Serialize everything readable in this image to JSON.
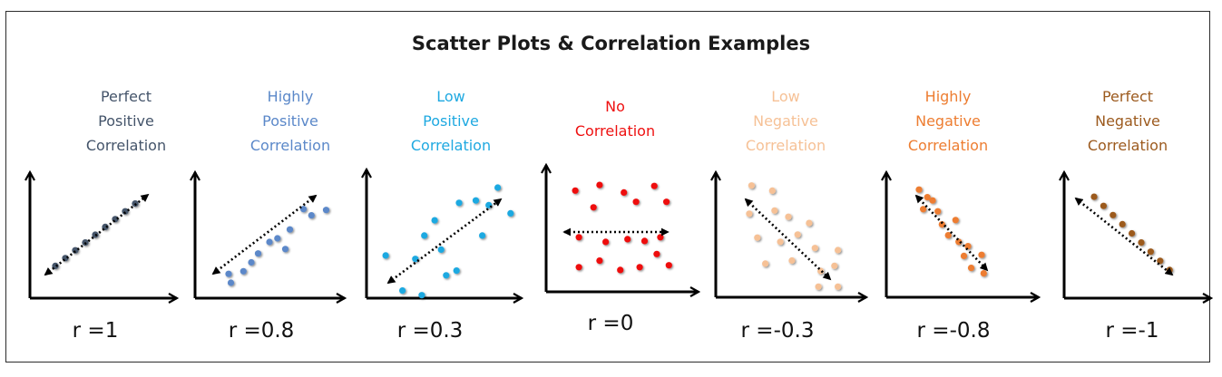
{
  "title": "Scatter Plots & Correlation Examples",
  "panels": [
    {
      "label": "Perfect\nPositive\nCorrelation",
      "r_label": "r =1",
      "color": "#44546a",
      "points": [
        [
          0.1,
          0.1
        ],
        [
          0.2,
          0.2
        ],
        [
          0.3,
          0.3
        ],
        [
          0.4,
          0.4
        ],
        [
          0.5,
          0.5
        ],
        [
          0.6,
          0.6
        ],
        [
          0.7,
          0.7
        ],
        [
          0.8,
          0.8
        ],
        [
          0.9,
          0.9
        ]
      ]
    },
    {
      "label": "Highly\nPositive\nCorrelation",
      "r_label": "r =0.8",
      "color": "#5b88c9",
      "points": [
        [
          0.12,
          0.12
        ],
        [
          0.14,
          0.02
        ],
        [
          0.25,
          0.15
        ],
        [
          0.32,
          0.25
        ],
        [
          0.38,
          0.35
        ],
        [
          0.48,
          0.48
        ],
        [
          0.55,
          0.52
        ],
        [
          0.62,
          0.4
        ],
        [
          0.66,
          0.62
        ],
        [
          0.78,
          0.85
        ],
        [
          0.85,
          0.78
        ],
        [
          0.98,
          0.84
        ]
      ]
    },
    {
      "label": "Low\nPositive\nCorrelation",
      "r_label": "r =0.3",
      "color": "#1fa9e1",
      "points": [
        [
          0.05,
          0.35
        ],
        [
          0.18,
          0.05
        ],
        [
          0.33,
          0.01
        ],
        [
          0.28,
          0.32
        ],
        [
          0.35,
          0.52
        ],
        [
          0.43,
          0.65
        ],
        [
          0.48,
          0.4
        ],
        [
          0.52,
          0.18
        ],
        [
          0.6,
          0.22
        ],
        [
          0.62,
          0.8
        ],
        [
          0.75,
          0.82
        ],
        [
          0.8,
          0.52
        ],
        [
          0.85,
          0.78
        ],
        [
          0.92,
          0.93
        ],
        [
          1.02,
          0.71
        ]
      ]
    },
    {
      "label": "No\nCorrelation",
      "r_label": "r =0",
      "color": "#ee1111",
      "points": [
        [
          0.15,
          0.9
        ],
        [
          0.3,
          0.72
        ],
        [
          0.35,
          0.96
        ],
        [
          0.55,
          0.88
        ],
        [
          0.65,
          0.78
        ],
        [
          0.8,
          0.95
        ],
        [
          0.9,
          0.78
        ],
        [
          0.18,
          0.4
        ],
        [
          0.4,
          0.35
        ],
        [
          0.58,
          0.38
        ],
        [
          0.72,
          0.36
        ],
        [
          0.85,
          0.4
        ],
        [
          0.35,
          0.15
        ],
        [
          0.52,
          0.05
        ],
        [
          0.68,
          0.08
        ],
        [
          0.82,
          0.22
        ],
        [
          0.92,
          0.1
        ],
        [
          0.18,
          0.08
        ]
      ]
    },
    {
      "label": "Low\nNegative\nCorrelation",
      "r_label": "r =-0.3",
      "color": "#f6c196",
      "points": [
        [
          0.2,
          1.02
        ],
        [
          0.38,
          0.97
        ],
        [
          0.18,
          0.75
        ],
        [
          0.4,
          0.78
        ],
        [
          0.52,
          0.72
        ],
        [
          0.7,
          0.66
        ],
        [
          0.25,
          0.52
        ],
        [
          0.45,
          0.48
        ],
        [
          0.6,
          0.55
        ],
        [
          0.32,
          0.27
        ],
        [
          0.55,
          0.3
        ],
        [
          0.75,
          0.42
        ],
        [
          0.8,
          0.2
        ],
        [
          0.92,
          0.25
        ],
        [
          0.95,
          0.4
        ],
        [
          0.78,
          0.05
        ],
        [
          0.95,
          0.05
        ]
      ]
    },
    {
      "label": "Highly\nNegative\nCorrelation",
      "r_label": "r =-0.8",
      "color": "#ed7d31",
      "points": [
        [
          0.2,
          0.94
        ],
        [
          0.28,
          0.87
        ],
        [
          0.33,
          0.84
        ],
        [
          0.24,
          0.76
        ],
        [
          0.38,
          0.74
        ],
        [
          0.42,
          0.62
        ],
        [
          0.55,
          0.66
        ],
        [
          0.48,
          0.52
        ],
        [
          0.58,
          0.46
        ],
        [
          0.67,
          0.42
        ],
        [
          0.63,
          0.33
        ],
        [
          0.8,
          0.34
        ],
        [
          0.7,
          0.22
        ],
        [
          0.82,
          0.17
        ]
      ]
    },
    {
      "label": "Perfect\nNegative\nCorrelation",
      "r_label": "r =-1",
      "color": "#9c5a1e",
      "points": [
        [
          0.2,
          0.9
        ],
        [
          0.28,
          0.8
        ],
        [
          0.36,
          0.7
        ],
        [
          0.44,
          0.6
        ],
        [
          0.52,
          0.5
        ],
        [
          0.6,
          0.4
        ],
        [
          0.68,
          0.3
        ],
        [
          0.76,
          0.2
        ],
        [
          0.84,
          0.1
        ]
      ]
    }
  ]
}
